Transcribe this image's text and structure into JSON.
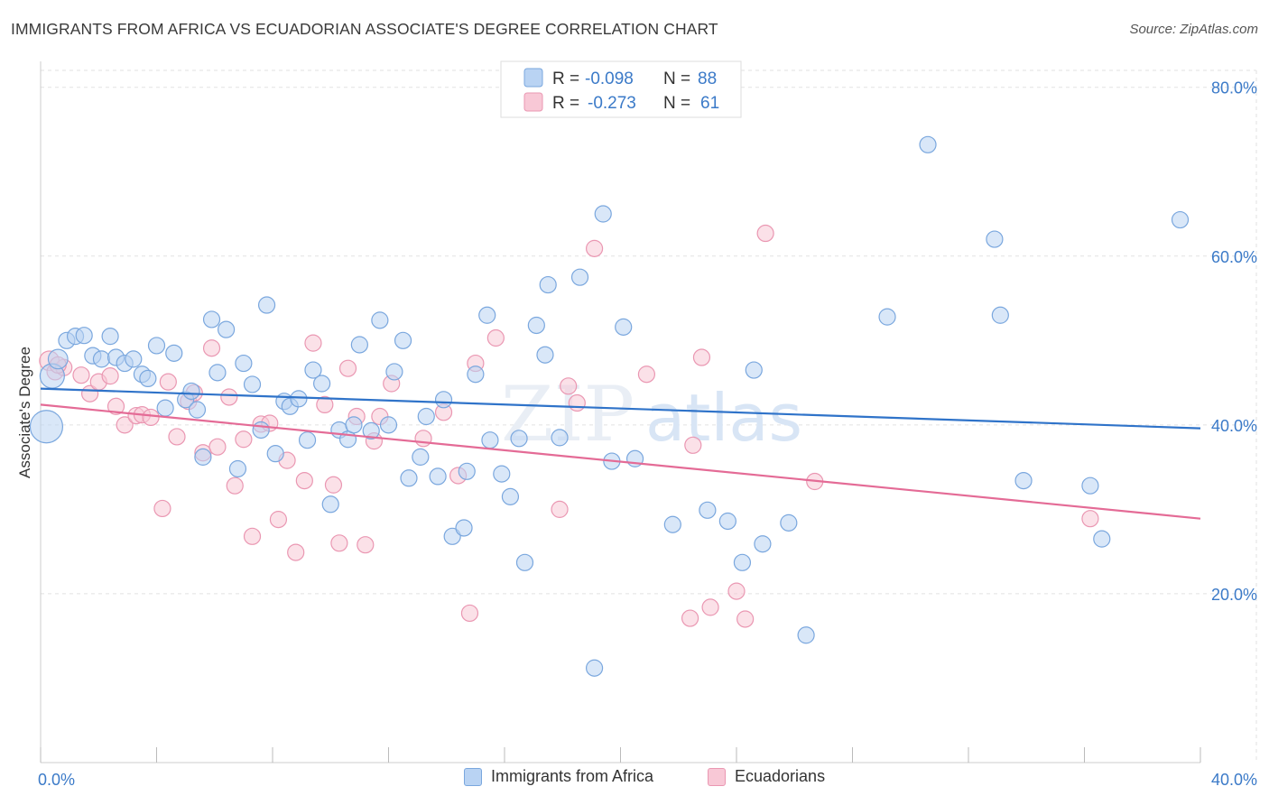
{
  "header": {
    "title": "IMMIGRANTS FROM AFRICA VS ECUADORIAN ASSOCIATE'S DEGREE CORRELATION CHART",
    "source": "Source: ZipAtlas.com"
  },
  "watermark": {
    "zip": "ZIP",
    "atlas": "atlas"
  },
  "colors": {
    "blue_fill": "#b9d3f3",
    "blue_stroke": "#7aa7de",
    "blue_line": "#2f73c9",
    "pink_fill": "#f8c8d6",
    "pink_stroke": "#ea97b2",
    "pink_line": "#e46b96",
    "axis_label": "#3b7ac8",
    "grid": "#e2e2e2"
  },
  "legend_top": {
    "rows": [
      {
        "r_label": "R =",
        "r_value": "-0.098",
        "n_label": "N =",
        "n_value": "88"
      },
      {
        "r_label": "R =",
        "r_value": "-0.273",
        "n_label": "N =",
        "n_value": "61"
      }
    ]
  },
  "legend_bottom": {
    "items": [
      {
        "label": "Immigrants from Africa"
      },
      {
        "label": "Ecuadorians"
      }
    ]
  },
  "chart_data": {
    "type": "scatter",
    "ylabel": "Associate's Degree",
    "xlim": [
      0,
      40
    ],
    "ylim": [
      0,
      82
    ],
    "x_tick_labels": [
      "0.0%",
      "40.0%"
    ],
    "y_ticks": [
      20,
      40,
      60,
      80
    ],
    "y_tick_labels": [
      "20.0%",
      "40.0%",
      "60.0%",
      "80.0%"
    ],
    "grid": true,
    "series": [
      {
        "name": "Immigrants from Africa",
        "trend": {
          "x": [
            0,
            40
          ],
          "y": [
            44.3,
            39.6
          ]
        },
        "points": [
          [
            0.2,
            39.8,
            2.0
          ],
          [
            0.4,
            45.8,
            1.5
          ],
          [
            0.6,
            47.8,
            1.2
          ],
          [
            0.9,
            50.0,
            1.0
          ],
          [
            1.2,
            50.5,
            1.0
          ],
          [
            1.5,
            50.6,
            1.0
          ],
          [
            1.8,
            48.2,
            1.0
          ],
          [
            2.1,
            47.8,
            1.0
          ],
          [
            2.4,
            50.5,
            1.0
          ],
          [
            2.6,
            48.0,
            1.0
          ],
          [
            2.9,
            47.3,
            1.0
          ],
          [
            3.2,
            47.8,
            1.0
          ],
          [
            3.5,
            46.0,
            1.0
          ],
          [
            3.7,
            45.5,
            1.0
          ],
          [
            4.0,
            49.4,
            1.0
          ],
          [
            4.3,
            42.0,
            1.0
          ],
          [
            4.6,
            48.5,
            1.0
          ],
          [
            5.0,
            43.0,
            1.0
          ],
          [
            5.2,
            44.0,
            1.0
          ],
          [
            5.4,
            41.8,
            1.0
          ],
          [
            5.6,
            36.2,
            1.0
          ],
          [
            5.9,
            52.5,
            1.0
          ],
          [
            6.1,
            46.2,
            1.0
          ],
          [
            6.4,
            51.3,
            1.0
          ],
          [
            6.8,
            34.8,
            1.0
          ],
          [
            7.0,
            47.3,
            1.0
          ],
          [
            7.3,
            44.8,
            1.0
          ],
          [
            7.6,
            39.4,
            1.0
          ],
          [
            7.8,
            54.2,
            1.0
          ],
          [
            8.1,
            36.6,
            1.0
          ],
          [
            8.4,
            42.8,
            1.0
          ],
          [
            8.6,
            42.2,
            1.0
          ],
          [
            8.9,
            43.1,
            1.0
          ],
          [
            9.2,
            38.2,
            1.0
          ],
          [
            9.4,
            46.5,
            1.0
          ],
          [
            9.7,
            44.9,
            1.0
          ],
          [
            10.0,
            30.6,
            1.0
          ],
          [
            10.3,
            39.4,
            1.0
          ],
          [
            10.6,
            38.3,
            1.0
          ],
          [
            10.8,
            40.0,
            1.0
          ],
          [
            11.0,
            49.5,
            1.0
          ],
          [
            11.4,
            39.3,
            1.0
          ],
          [
            11.7,
            52.4,
            1.0
          ],
          [
            12.0,
            40.0,
            1.0
          ],
          [
            12.2,
            46.3,
            1.0
          ],
          [
            12.5,
            50.0,
            1.0
          ],
          [
            12.7,
            33.7,
            1.0
          ],
          [
            13.1,
            36.2,
            1.0
          ],
          [
            13.3,
            41.0,
            1.0
          ],
          [
            13.7,
            33.9,
            1.0
          ],
          [
            13.9,
            43.0,
            1.0
          ],
          [
            14.2,
            26.8,
            1.0
          ],
          [
            14.6,
            27.8,
            1.0
          ],
          [
            14.7,
            34.5,
            1.0
          ],
          [
            15.0,
            46.0,
            1.0
          ],
          [
            15.4,
            53.0,
            1.0
          ],
          [
            15.5,
            38.2,
            1.0
          ],
          [
            15.9,
            34.2,
            1.0
          ],
          [
            16.2,
            31.5,
            1.0
          ],
          [
            16.5,
            38.4,
            1.0
          ],
          [
            16.7,
            23.7,
            1.0
          ],
          [
            17.1,
            51.8,
            1.0
          ],
          [
            17.4,
            48.3,
            1.0
          ],
          [
            17.5,
            56.6,
            1.0
          ],
          [
            17.9,
            38.5,
            1.0
          ],
          [
            18.6,
            57.5,
            1.0
          ],
          [
            19.1,
            11.2,
            1.0
          ],
          [
            19.4,
            65.0,
            1.0
          ],
          [
            19.7,
            35.7,
            1.0
          ],
          [
            20.1,
            51.6,
            1.0
          ],
          [
            20.5,
            36.0,
            1.0
          ],
          [
            21.8,
            28.2,
            1.0
          ],
          [
            23.0,
            29.9,
            1.0
          ],
          [
            23.2,
            78.0,
            1.0
          ],
          [
            23.7,
            28.6,
            1.0
          ],
          [
            24.2,
            23.7,
            1.0
          ],
          [
            24.6,
            46.5,
            1.0
          ],
          [
            24.9,
            25.9,
            1.0
          ],
          [
            25.8,
            28.4,
            1.0
          ],
          [
            26.4,
            15.1,
            1.0
          ],
          [
            29.2,
            52.8,
            1.0
          ],
          [
            30.6,
            73.2,
            1.0
          ],
          [
            32.9,
            62.0,
            1.0
          ],
          [
            33.1,
            53.0,
            1.0
          ],
          [
            33.9,
            33.4,
            1.0
          ],
          [
            36.2,
            32.8,
            1.0
          ],
          [
            36.6,
            26.5,
            1.0
          ],
          [
            39.3,
            64.3,
            1.0
          ]
        ]
      },
      {
        "name": "Ecuadorians",
        "trend": {
          "x": [
            0,
            40
          ],
          "y": [
            42.4,
            28.9
          ]
        },
        "points": [
          [
            0.3,
            47.6,
            1.2
          ],
          [
            0.5,
            46.3,
            1.0
          ],
          [
            0.8,
            46.8,
            1.0
          ],
          [
            1.4,
            45.9,
            1.0
          ],
          [
            1.7,
            43.7,
            1.0
          ],
          [
            2.0,
            45.1,
            1.0
          ],
          [
            2.4,
            45.8,
            1.0
          ],
          [
            2.6,
            42.2,
            1.0
          ],
          [
            2.9,
            40.0,
            1.0
          ],
          [
            3.3,
            41.1,
            1.0
          ],
          [
            3.5,
            41.2,
            1.0
          ],
          [
            3.8,
            40.9,
            1.0
          ],
          [
            4.2,
            30.1,
            1.0
          ],
          [
            4.4,
            45.1,
            1.0
          ],
          [
            4.7,
            38.6,
            1.0
          ],
          [
            5.1,
            42.8,
            1.0
          ],
          [
            5.3,
            43.8,
            1.0
          ],
          [
            5.6,
            36.7,
            1.0
          ],
          [
            5.9,
            49.1,
            1.0
          ],
          [
            6.1,
            37.4,
            1.0
          ],
          [
            6.5,
            43.3,
            1.0
          ],
          [
            6.7,
            32.8,
            1.0
          ],
          [
            7.0,
            38.3,
            1.0
          ],
          [
            7.3,
            26.8,
            1.0
          ],
          [
            7.6,
            40.1,
            1.0
          ],
          [
            7.9,
            40.2,
            1.0
          ],
          [
            8.2,
            28.8,
            1.0
          ],
          [
            8.5,
            35.8,
            1.0
          ],
          [
            8.8,
            24.9,
            1.0
          ],
          [
            9.1,
            33.4,
            1.0
          ],
          [
            9.4,
            49.7,
            1.0
          ],
          [
            9.8,
            42.4,
            1.0
          ],
          [
            10.1,
            32.9,
            1.0
          ],
          [
            10.3,
            26.0,
            1.0
          ],
          [
            10.6,
            46.7,
            1.0
          ],
          [
            10.9,
            41.0,
            1.0
          ],
          [
            11.2,
            25.8,
            1.0
          ],
          [
            11.5,
            38.1,
            1.0
          ],
          [
            11.7,
            41.0,
            1.0
          ],
          [
            12.1,
            44.9,
            1.0
          ],
          [
            13.2,
            38.4,
            1.0
          ],
          [
            13.9,
            41.5,
            1.0
          ],
          [
            14.4,
            34.0,
            1.0
          ],
          [
            14.8,
            17.7,
            1.0
          ],
          [
            15.0,
            47.3,
            1.0
          ],
          [
            15.7,
            50.3,
            1.0
          ],
          [
            17.9,
            30.0,
            1.0
          ],
          [
            18.2,
            44.6,
            1.0
          ],
          [
            18.5,
            42.6,
            1.0
          ],
          [
            19.1,
            60.9,
            1.0
          ],
          [
            20.9,
            46.0,
            1.0
          ],
          [
            22.4,
            17.1,
            1.0
          ],
          [
            22.5,
            37.6,
            1.0
          ],
          [
            22.8,
            48.0,
            1.0
          ],
          [
            23.1,
            18.4,
            1.0
          ],
          [
            24.0,
            20.3,
            1.0
          ],
          [
            24.3,
            17.0,
            1.0
          ],
          [
            25.0,
            62.7,
            1.0
          ],
          [
            26.7,
            33.3,
            1.0
          ],
          [
            36.2,
            28.9,
            1.0
          ],
          [
            0.6,
            47.1,
            1.0
          ]
        ]
      }
    ]
  }
}
